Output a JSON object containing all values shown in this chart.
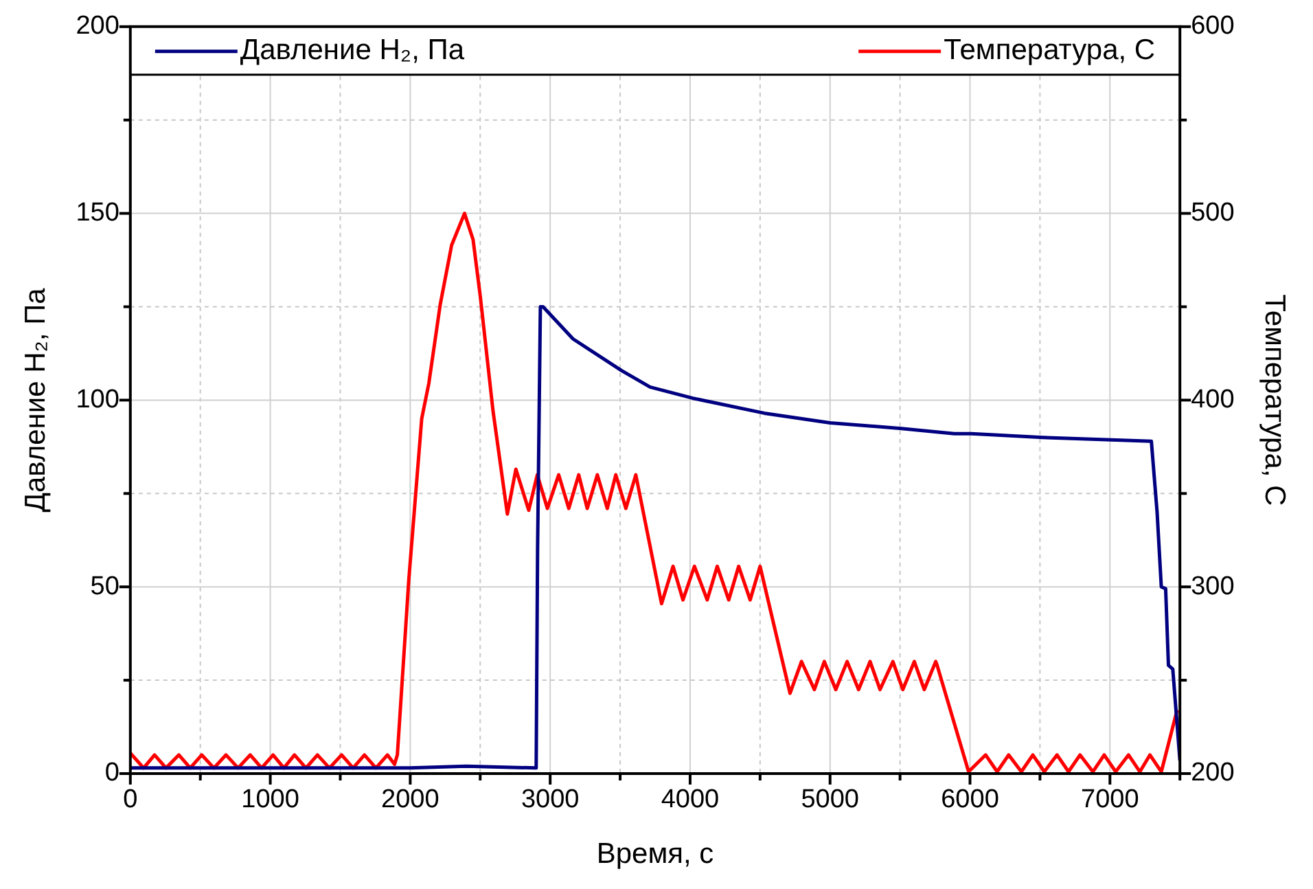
{
  "chart_data": {
    "type": "line",
    "xlabel": "Время, с",
    "ylabel": "Давление H₂, Па",
    "y2label": "Температура, С",
    "legend": "top",
    "grid": true,
    "xlim": [
      0,
      7500
    ],
    "xticks": [
      0,
      {
        "value": 500,
        "label": null
      },
      1000,
      {
        "value": 1500,
        "label": null
      },
      2000,
      {
        "value": 2500,
        "label": null
      },
      3000,
      {
        "value": 3500,
        "label": null
      },
      4000,
      {
        "value": 4500,
        "label": null
      },
      5000,
      {
        "value": 5500,
        "label": null
      },
      6000,
      {
        "value": 6500,
        "label": null
      },
      7000,
      {
        "value": 7500,
        "label": null
      }
    ],
    "ylim": [
      0,
      200
    ],
    "yticks": [
      0,
      {
        "value": 25,
        "label": null
      },
      50,
      {
        "value": 75,
        "label": null
      },
      100,
      {
        "value": 125,
        "label": null
      },
      150,
      {
        "value": 175,
        "label": null
      },
      200
    ],
    "y2lim": [
      200,
      600
    ],
    "y2ticks": [
      200,
      {
        "value": 250,
        "label": null
      },
      300,
      {
        "value": 350,
        "label": null
      },
      400,
      {
        "value": 450,
        "label": null
      },
      500,
      {
        "value": 550,
        "label": null
      },
      600
    ],
    "series": [
      {
        "name": "Давление H₂, Па",
        "color": "#000080",
        "x": [
          0,
          500,
          1000,
          1500,
          2000,
          2400,
          2900,
          2910,
          2930,
          2949,
          3163,
          3510,
          3714,
          4020,
          4530,
          5000,
          5510,
          5888,
          6010,
          6520,
          7296,
          7337,
          7367,
          7398,
          7418,
          7449,
          7500
        ],
        "values": [
          1.5,
          1.5,
          1.5,
          1.5,
          1.5,
          2,
          1.5,
          60,
          125,
          125,
          116.4,
          107.9,
          103.5,
          100.5,
          96.5,
          93.9,
          92.4,
          91,
          91,
          90,
          89,
          70,
          50,
          49.5,
          29,
          28,
          3.5
        ]
      },
      {
        "name": "Температура, С",
        "color": "#ff0000",
        "axis": "y2",
        "x": [
          0,
          95,
          173,
          255,
          347,
          428,
          510,
          597,
          684,
          770,
          857,
          938,
          1020,
          1097,
          1173,
          1255,
          1337,
          1423,
          1510,
          1592,
          1673,
          1755,
          1837,
          1888,
          1908,
          1990,
          2082,
          2133,
          2214,
          2296,
          2388,
          2449,
          2500,
          2592,
          2694,
          2755,
          2847,
          2908,
          2980,
          3061,
          3133,
          3204,
          3265,
          3337,
          3408,
          3469,
          3541,
          3612,
          3796,
          3878,
          3949,
          4031,
          4122,
          4194,
          4276,
          4347,
          4429,
          4500,
          4714,
          4796,
          4888,
          4959,
          5041,
          5122,
          5204,
          5286,
          5357,
          5449,
          5520,
          5602,
          5673,
          5755,
          5765,
          5990,
          6112,
          6194,
          6276,
          6367,
          6449,
          6531,
          6622,
          6704,
          6786,
          6878,
          6959,
          7041,
          7133,
          7214,
          7286,
          7367,
          7480
        ],
        "values": [
          211,
          203,
          210,
          203,
          210,
          203,
          210,
          203,
          210,
          203,
          210,
          203,
          210,
          203,
          210,
          203,
          210,
          203,
          210,
          203,
          210,
          203,
          210,
          205,
          210,
          304,
          390,
          409,
          451,
          483,
          500,
          486,
          456,
          394,
          339,
          363,
          341,
          360,
          342,
          360,
          342,
          360,
          342,
          360,
          342,
          360,
          342,
          360,
          291,
          311,
          293,
          311,
          293,
          311,
          293,
          311,
          293,
          311,
          243,
          260,
          245,
          260,
          245,
          260,
          245,
          260,
          245,
          260,
          245,
          260,
          245,
          260,
          258,
          201,
          210,
          201,
          210,
          201,
          210,
          201,
          210,
          201,
          210,
          201,
          210,
          201,
          210,
          201,
          210,
          201,
          234
        ]
      }
    ]
  }
}
